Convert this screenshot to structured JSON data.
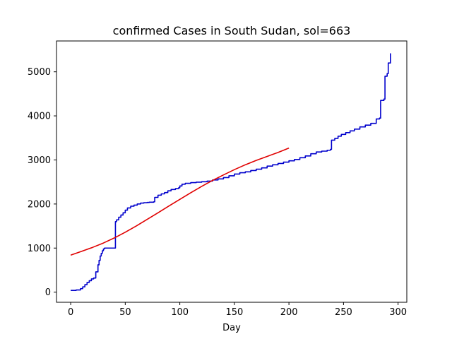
{
  "chart_data": {
    "type": "line",
    "title": "confirmed Cases in South Sudan, sol=663",
    "xlabel": "Day",
    "ylabel": "",
    "xlim": [
      -13,
      308
    ],
    "ylim": [
      -230,
      5700
    ],
    "xticks": [
      0,
      50,
      100,
      150,
      200,
      250,
      300
    ],
    "xtick_labels": [
      "0",
      "50",
      "100",
      "150",
      "200",
      "250",
      "300"
    ],
    "yticks": [
      0,
      1000,
      2000,
      3000,
      4000,
      5000
    ],
    "ytick_labels": [
      "0",
      "1000",
      "2000",
      "3000",
      "4000",
      "5000"
    ],
    "grid": false,
    "legend": "none",
    "series": [
      {
        "kind": "step",
        "color": "#0000cc",
        "x": [
          0,
          5,
          9,
          11,
          13,
          15,
          17,
          19,
          21,
          23,
          25,
          26,
          27,
          28,
          29,
          30,
          31,
          40,
          41,
          42,
          44,
          46,
          48,
          50,
          52,
          55,
          58,
          61,
          64,
          67,
          70,
          72,
          76,
          77,
          80,
          83,
          86,
          89,
          92,
          96,
          99,
          100,
          102,
          105,
          110,
          115,
          120,
          125,
          130,
          135,
          140,
          145,
          150,
          155,
          160,
          165,
          170,
          175,
          180,
          185,
          190,
          195,
          200,
          205,
          210,
          215,
          220,
          225,
          230,
          235,
          238,
          239,
          242,
          245,
          248,
          252,
          256,
          260,
          265,
          270,
          275,
          280,
          283,
          284,
          287,
          288,
          290,
          291,
          293
        ],
        "y": [
          40,
          50,
          80,
          120,
          170,
          220,
          260,
          300,
          320,
          460,
          620,
          720,
          820,
          880,
          940,
          980,
          1000,
          1000,
          1600,
          1640,
          1700,
          1750,
          1800,
          1860,
          1910,
          1950,
          1975,
          2000,
          2020,
          2030,
          2035,
          2040,
          2050,
          2150,
          2200,
          2230,
          2260,
          2300,
          2330,
          2350,
          2370,
          2410,
          2450,
          2470,
          2485,
          2495,
          2505,
          2520,
          2545,
          2570,
          2600,
          2640,
          2680,
          2710,
          2730,
          2760,
          2790,
          2820,
          2860,
          2890,
          2920,
          2950,
          2980,
          3010,
          3050,
          3090,
          3140,
          3180,
          3200,
          3220,
          3240,
          3450,
          3490,
          3540,
          3580,
          3620,
          3660,
          3700,
          3750,
          3790,
          3830,
          3930,
          3950,
          4350,
          4380,
          4900,
          4960,
          5200,
          5420
        ]
      },
      {
        "kind": "line",
        "color": "#e00000",
        "x": [
          0,
          10,
          20,
          30,
          40,
          50,
          60,
          70,
          80,
          90,
          100,
          110,
          120,
          130,
          140,
          150,
          160,
          170,
          180,
          190,
          200
        ],
        "y": [
          840,
          925,
          1015,
          1115,
          1230,
          1360,
          1500,
          1650,
          1800,
          1955,
          2105,
          2255,
          2400,
          2535,
          2660,
          2780,
          2890,
          2990,
          3080,
          3170,
          3270
        ]
      }
    ]
  }
}
